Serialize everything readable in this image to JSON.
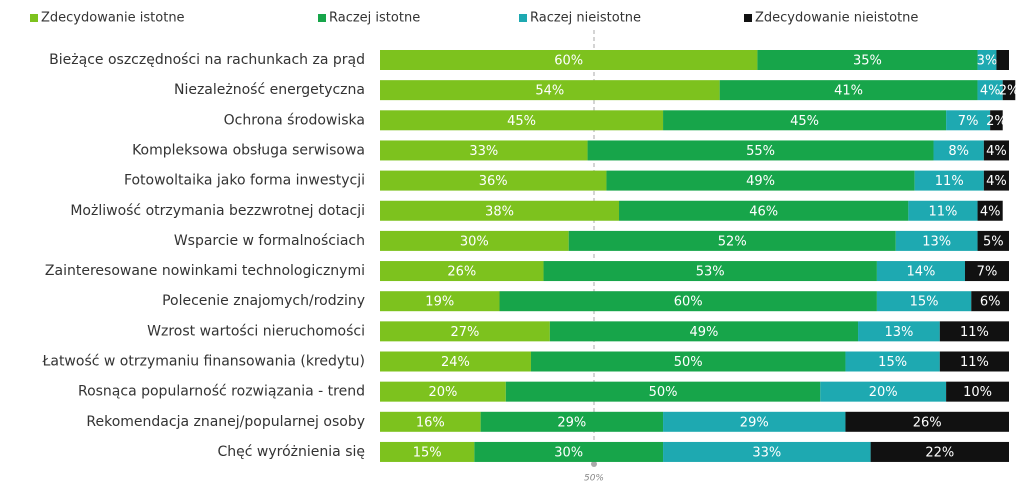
{
  "chart_data": {
    "type": "stacked-barh",
    "categories": [
      "Bieżące oszczędności na rachunkach za prąd",
      "Niezależność energetyczna",
      "Ochrona środowiska",
      "Kompleksowa obsługa serwisowa",
      "Fotowoltaika jako forma inwestycji",
      "Możliwość otrzymania bezzwrotnej dotacji",
      "Wsparcie w formalnościach",
      "Zainteresowane nowinkami technologicznymi",
      "Polecenie znajomych/rodziny",
      "Wzrost wartości nieruchomości",
      "Łatwość w otrzymaniu finansowania (kredytu)",
      "Rosnąca popularność rozwiązania - trend",
      "Rekomendacja znanej/popularnej osoby",
      "Chęć wyróżnienia się"
    ],
    "series": [
      {
        "name": "Zdecydowanie istotne",
        "color": "#7dc21e",
        "values": [
          60,
          54,
          45,
          33,
          36,
          38,
          30,
          26,
          19,
          27,
          24,
          20,
          16,
          15
        ],
        "value_labels": [
          "60%",
          "54%",
          "45%",
          "33%",
          "36%",
          "38%",
          "30%",
          "26%",
          "19%",
          "27%",
          "24%",
          "20%",
          "16%",
          "15%"
        ]
      },
      {
        "name": "Raczej istotne",
        "color": "#17a54a",
        "values": [
          35,
          41,
          45,
          55,
          49,
          46,
          52,
          53,
          60,
          49,
          50,
          50,
          29,
          30
        ],
        "value_labels": [
          "35%",
          "41%",
          "45%",
          "55%",
          "49%",
          "46%",
          "52%",
          "53%",
          "60%",
          "49%",
          "50%",
          "50%",
          "29%",
          "30%"
        ]
      },
      {
        "name": "Raczej nieistotne",
        "color": "#1ea9b1",
        "values": [
          3,
          4,
          7,
          8,
          11,
          11,
          13,
          14,
          15,
          13,
          15,
          20,
          29,
          33
        ],
        "value_labels": [
          "3%",
          "4%",
          "7%",
          "8%",
          "11%",
          "11%",
          "13%",
          "14%",
          "15%",
          "13%",
          "15%",
          "20%",
          "29%",
          "33%"
        ]
      },
      {
        "name": "Zdecydowanie nieistotne",
        "color": "#111111",
        "values": [
          2,
          2,
          2,
          4,
          4,
          4,
          5,
          7,
          6,
          11,
          11,
          10,
          26,
          22
        ],
        "value_labels": [
          null,
          "2%",
          "2%",
          "4%",
          "4%",
          "4%",
          "5%",
          "7%",
          "6%",
          "11%",
          "11%",
          "10%",
          "26%",
          "22%"
        ]
      }
    ],
    "xlim": [
      0,
      100
    ],
    "annotation": "50%",
    "legend": "top"
  }
}
